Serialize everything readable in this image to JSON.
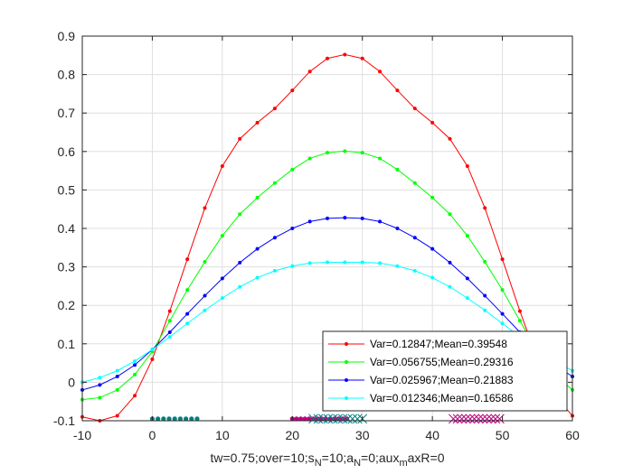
{
  "chart_data": {
    "type": "line",
    "xlabel": "tw=0.75;over=10;s_N=10;a_N=0;aux_maxR=0",
    "xlabel_parts": {
      "p1": "tw=0.75;over=10;s",
      "s1": "N",
      "p2": "=10;a",
      "s2": "N",
      "p3": "=0;aux",
      "s3": "m",
      "p4": "axR=0"
    },
    "xlim": [
      -10,
      60
    ],
    "ylim": [
      -0.1,
      0.9
    ],
    "xticks": [
      -10,
      0,
      10,
      20,
      30,
      40,
      50,
      60
    ],
    "yticks": [
      -0.1,
      0,
      0.1,
      0.2,
      0.3,
      0.4,
      0.5,
      0.6,
      0.7,
      0.8,
      0.9
    ],
    "xtick_labels": [
      "-10",
      "0",
      "10",
      "20",
      "30",
      "40",
      "50",
      "60"
    ],
    "ytick_labels": [
      "-0.1",
      "0",
      "0.1",
      "0.2",
      "0.3",
      "0.4",
      "0.5",
      "0.6",
      "0.7",
      "0.8",
      "0.9"
    ],
    "grid": true,
    "legend_position": "bottom-right",
    "x": [
      -10,
      -7.5,
      -5,
      -2.5,
      0,
      2.5,
      5,
      7.5,
      10,
      12.5,
      15,
      17.5,
      20,
      22.5,
      25,
      27.5,
      30,
      32.5,
      35,
      37.5,
      40,
      42.5,
      45,
      47.5,
      50,
      52.5,
      55,
      57.5,
      60
    ],
    "series": [
      {
        "name": "Var=0.12847;Mean=0.39548",
        "color": "#ff0000",
        "values": [
          -0.09,
          -0.1,
          -0.087,
          -0.035,
          0.06,
          0.185,
          0.32,
          0.453,
          0.562,
          0.633,
          0.675,
          0.712,
          0.759,
          0.808,
          0.842,
          0.852,
          0.842,
          0.808,
          0.759,
          0.712,
          0.675,
          0.633,
          0.562,
          0.453,
          0.32,
          0.185,
          0.06,
          -0.035,
          -0.087
        ]
      },
      {
        "name": "Var=0.056755;Mean=0.29316",
        "color": "#00ff00",
        "values": [
          -0.045,
          -0.04,
          -0.02,
          0.02,
          0.08,
          0.16,
          0.24,
          0.313,
          0.381,
          0.437,
          0.48,
          0.518,
          0.553,
          0.582,
          0.597,
          0.601,
          0.597,
          0.582,
          0.553,
          0.518,
          0.48,
          0.437,
          0.381,
          0.313,
          0.24,
          0.16,
          0.08,
          0.02,
          -0.02
        ]
      },
      {
        "name": "Var=0.025967;Mean=0.21883",
        "color": "#0000ff",
        "values": [
          -0.02,
          -0.007,
          0.015,
          0.045,
          0.085,
          0.13,
          0.178,
          0.225,
          0.27,
          0.311,
          0.347,
          0.376,
          0.4,
          0.418,
          0.426,
          0.428,
          0.426,
          0.418,
          0.4,
          0.376,
          0.347,
          0.311,
          0.27,
          0.225,
          0.178,
          0.13,
          0.085,
          0.045,
          0.015
        ]
      },
      {
        "name": "Var=0.012346;Mean=0.16586",
        "color": "#00ffff",
        "values": [
          0.0,
          0.012,
          0.03,
          0.055,
          0.085,
          0.118,
          0.153,
          0.187,
          0.219,
          0.248,
          0.272,
          0.29,
          0.302,
          0.31,
          0.312,
          0.312,
          0.312,
          0.31,
          0.302,
          0.29,
          0.272,
          0.248,
          0.219,
          0.187,
          0.153,
          0.118,
          0.085,
          0.055,
          0.03
        ]
      }
    ],
    "markers": [
      {
        "style": "dot",
        "color": "#008080",
        "y": -0.095,
        "x": [
          0,
          0.8,
          1.6,
          2.4,
          3.2,
          4,
          4.8,
          5.6,
          6.4
        ]
      },
      {
        "style": "dot",
        "color": "#c00080",
        "y": -0.095,
        "x": [
          20,
          20.6,
          21.2,
          21.8,
          22.4,
          23,
          23.6,
          24.2,
          24.8,
          25.4,
          26,
          26.6,
          27.2,
          27.8
        ]
      },
      {
        "style": "cross",
        "color": "#008080",
        "y": -0.095,
        "x": [
          23,
          23.7,
          24.4,
          25.1,
          25.8,
          26.5,
          27.2,
          27.9,
          28.6,
          29.3,
          30
        ]
      },
      {
        "style": "cross",
        "color": "#c00080",
        "y": -0.095,
        "x": [
          43,
          43.6,
          44.2,
          44.8,
          45.4,
          46,
          46.6,
          47.2,
          47.8,
          48.4,
          49,
          49.6
        ]
      }
    ]
  }
}
